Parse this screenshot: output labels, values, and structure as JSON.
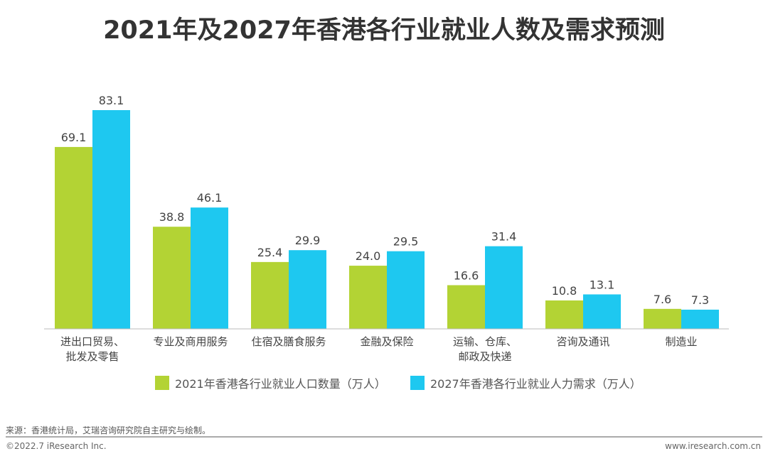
{
  "title": "2021年及2027年香港各行业就业人数及需求预测",
  "chart_data": {
    "type": "bar",
    "title": "2021年及2027年香港各行业就业人数及需求预测",
    "categories": [
      [
        "进出口贸易、",
        "批发及零售"
      ],
      [
        "专业及商用服务"
      ],
      [
        "住宿及膳食服务"
      ],
      [
        "金融及保险"
      ],
      [
        "运输、仓库、",
        "邮政及快递"
      ],
      [
        "咨询及通讯"
      ],
      [
        "制造业"
      ]
    ],
    "series": [
      {
        "name": "2021年香港各行业就业人口数量（万人）",
        "color": "#b3d334",
        "values": [
          69.1,
          38.8,
          25.4,
          24.0,
          16.6,
          10.8,
          7.6
        ]
      },
      {
        "name": "2027年香港各行业就业人力需求（万人）",
        "color": "#1ec8f0",
        "values": [
          83.1,
          46.1,
          29.9,
          29.5,
          31.4,
          13.1,
          7.3
        ]
      }
    ],
    "ylim": [
      0,
      85
    ],
    "grid": false,
    "legend": "bottom"
  },
  "footer": {
    "source": "来源：香港统计局，艾瑞咨询研究院自主研究与绘制。",
    "copyright": "©2022.7 iResearch Inc.",
    "website": "www.iresearch.com.cn"
  }
}
